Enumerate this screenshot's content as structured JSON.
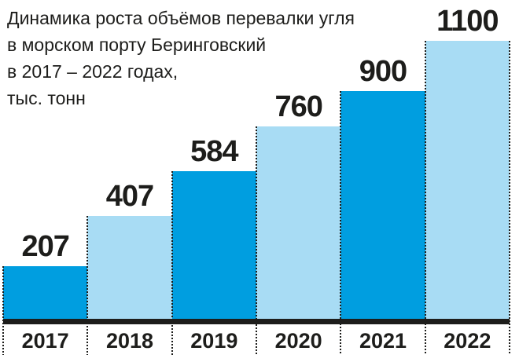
{
  "title": {
    "lines": [
      "Динамика роста объёмов перевалки угля",
      "в морском порту Беринговский",
      "в 2017 – 2022 годах,",
      "тыс. тонн"
    ]
  },
  "chart_data": {
    "type": "bar",
    "categories": [
      "2017",
      "2018",
      "2019",
      "2020",
      "2021",
      "2022"
    ],
    "values": [
      207,
      407,
      584,
      760,
      900,
      1100
    ],
    "value_labels": [
      "207",
      "407",
      "584",
      "760",
      "900",
      "1100"
    ],
    "title": "Динамика роста объёмов перевалки угля в морском порту Беринговский в 2017 – 2022 годах, тыс. тонн",
    "xlabel": "",
    "ylabel": "",
    "units": "тыс. тонн",
    "ylim": [
      0,
      1100
    ],
    "legend": "none",
    "grid": "dotted-vertical-column-separators",
    "colors": {
      "bar_dark": "#009ee0",
      "bar_light": "#a8dcf4",
      "ink": "#1d1d1b",
      "background": "#ffffff"
    },
    "bar_color_pattern": [
      "dark",
      "light",
      "dark",
      "light",
      "dark",
      "light"
    ]
  }
}
